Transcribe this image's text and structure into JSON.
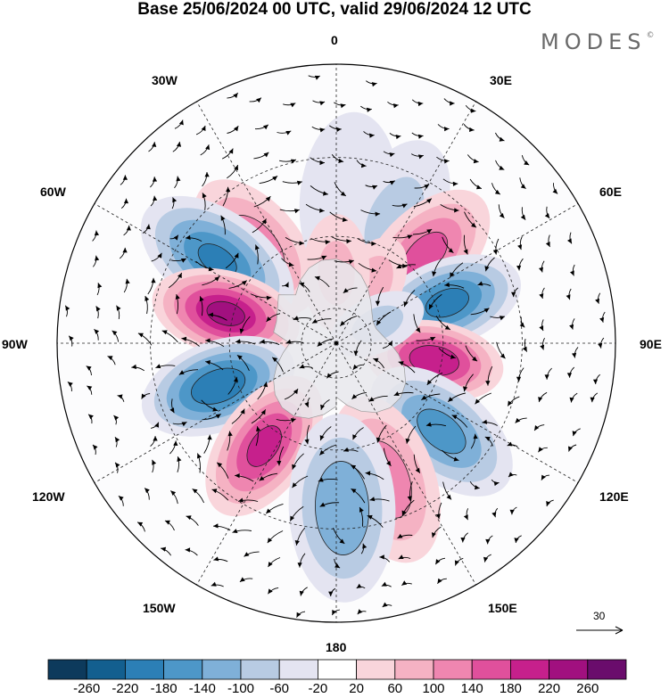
{
  "title": "Base 25/06/2024 00 UTC, valid 29/06/2024 12 UTC",
  "brand": "MODES",
  "brand_mark": "©",
  "meridian_labels": {
    "m0": "0",
    "m30e": "30E",
    "m60e": "60E",
    "m90e": "90E",
    "m120e": "120E",
    "m150e": "150E",
    "m180": "180",
    "m150w": "150W",
    "m120w": "120W",
    "m90w": "90W",
    "m60w": "60W",
    "m30w": "30W"
  },
  "vector_scale": {
    "label": "30",
    "arrow_icon": "arrow-right-icon"
  },
  "colorbar": {
    "ticks": [
      "-260",
      "-220",
      "-180",
      "-140",
      "-100",
      "-60",
      "-20",
      "20",
      "60",
      "100",
      "140",
      "180",
      "220",
      "260"
    ],
    "colors": [
      "#0d3a5c",
      "#135f8f",
      "#2c7fb6",
      "#4d97c8",
      "#7fb0d8",
      "#b8cbe3",
      "#e4e4f1",
      "#ffffff",
      "#f9d5db",
      "#f5b2c3",
      "#ef86b0",
      "#e0509c",
      "#c6208c",
      "#a1107f",
      "#6a0c6c"
    ]
  },
  "field_anomalies": [
    {
      "lon": -40,
      "lat": -55,
      "value": 120
    },
    {
      "lon": 5,
      "lat": -50,
      "value": -40
    },
    {
      "lon": 25,
      "lat": -52,
      "value": -60
    },
    {
      "lon": 45,
      "lat": -55,
      "value": 150
    },
    {
      "lon": -55,
      "lat": -50,
      "value": -180
    },
    {
      "lon": -75,
      "lat": -58,
      "value": 230
    },
    {
      "lon": 70,
      "lat": -57,
      "value": -190
    },
    {
      "lon": 100,
      "lat": -62,
      "value": 210
    },
    {
      "lon": -110,
      "lat": -55,
      "value": -210
    },
    {
      "lon": 130,
      "lat": -52,
      "value": -150
    },
    {
      "lon": -145,
      "lat": -55,
      "value": 190
    },
    {
      "lon": 160,
      "lat": -50,
      "value": 120
    },
    {
      "lon": 178,
      "lat": -45,
      "value": -130
    },
    {
      "lon": 30,
      "lat": -72,
      "value": 80
    },
    {
      "lon": 0,
      "lat": -70,
      "value": 60
    },
    {
      "lon": 65,
      "lat": -77,
      "value": -60
    }
  ]
}
